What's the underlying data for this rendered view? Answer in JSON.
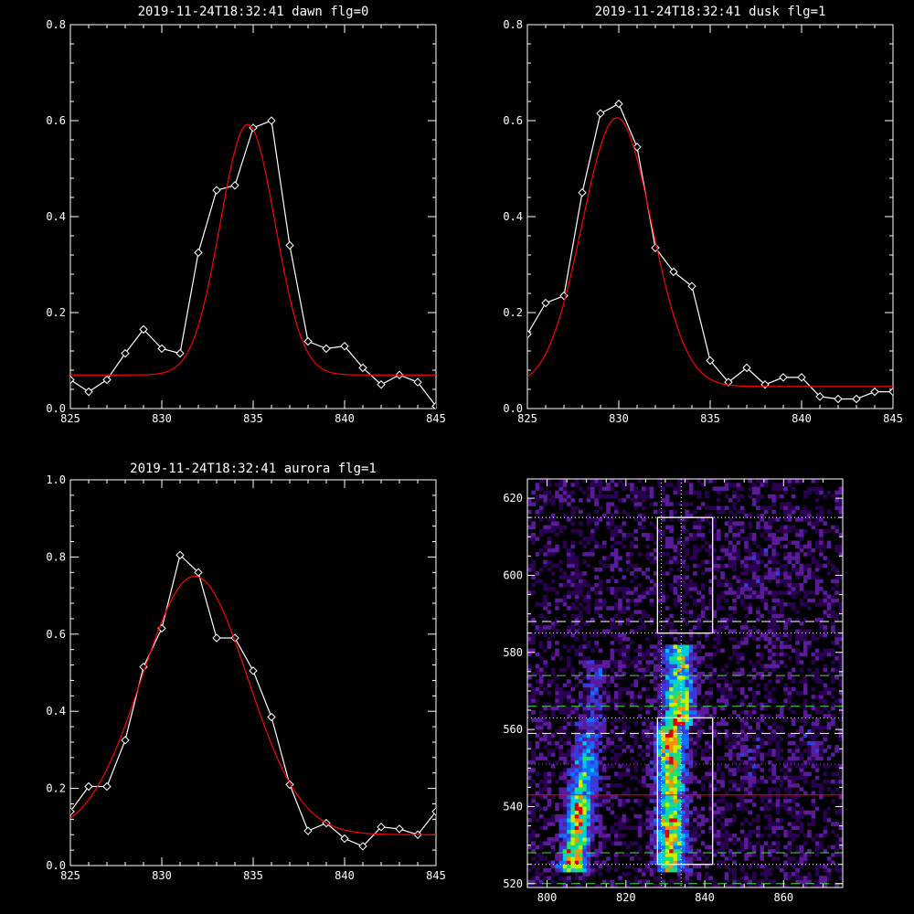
{
  "panels": [
    {
      "title": "2019-11-24T18:32:41 dawn flg=0",
      "chart_data": {
        "type": "line",
        "xlim": [
          825,
          845
        ],
        "ylim": [
          0.0,
          0.8
        ],
        "xticks": [
          "825",
          "830",
          "835",
          "840",
          "845"
        ],
        "yticks": [
          "0.0",
          "0.2",
          "0.4",
          "0.6",
          "0.8"
        ],
        "series": [
          {
            "role": "measured",
            "color": "#ffffff",
            "x": [
              825,
              826,
              827,
              828,
              829,
              830,
              831,
              832,
              833,
              834,
              835,
              836,
              837,
              838,
              839,
              840,
              841,
              842,
              843,
              844,
              845
            ],
            "y": [
              0.06,
              0.035,
              0.06,
              0.115,
              0.165,
              0.125,
              0.115,
              0.325,
              0.455,
              0.465,
              0.585,
              0.6,
              0.34,
              0.14,
              0.125,
              0.13,
              0.085,
              0.05,
              0.07,
              0.055,
              0.005
            ]
          },
          {
            "role": "gaussian-fit",
            "color": "#ff0000",
            "gaussian": {
              "amplitude": 0.522,
              "center": 834.7,
              "sigma": 1.5,
              "offset": 0.07
            }
          }
        ]
      }
    },
    {
      "title": "2019-11-24T18:32:41 dusk flg=1",
      "chart_data": {
        "type": "line",
        "xlim": [
          825,
          845
        ],
        "ylim": [
          0.0,
          0.8
        ],
        "xticks": [
          "825",
          "830",
          "835",
          "840",
          "845"
        ],
        "yticks": [
          "0.0",
          "0.2",
          "0.4",
          "0.6",
          "0.8"
        ],
        "series": [
          {
            "role": "measured",
            "color": "#ffffff",
            "x": [
              825,
              826,
              827,
              828,
              829,
              830,
              831,
              832,
              833,
              834,
              835,
              836,
              837,
              838,
              839,
              840,
              841,
              842,
              843,
              844,
              845
            ],
            "y": [
              0.155,
              0.22,
              0.235,
              0.45,
              0.615,
              0.635,
              0.545,
              0.335,
              0.285,
              0.255,
              0.1,
              0.055,
              0.085,
              0.05,
              0.065,
              0.065,
              0.025,
              0.02,
              0.02,
              0.035,
              0.035
            ]
          },
          {
            "role": "gaussian-fit",
            "color": "#ff0000",
            "gaussian": {
              "amplitude": 0.56,
              "center": 829.9,
              "sigma": 1.9,
              "offset": 0.046
            }
          }
        ]
      }
    },
    {
      "title": "2019-11-24T18:32:41 aurora flg=1",
      "chart_data": {
        "type": "line",
        "xlim": [
          825,
          845
        ],
        "ylim": [
          0.0,
          1.0
        ],
        "xticks": [
          "825",
          "830",
          "835",
          "840",
          "845"
        ],
        "yticks": [
          "0.0",
          "0.2",
          "0.4",
          "0.6",
          "0.8",
          "1.0"
        ],
        "series": [
          {
            "role": "measured",
            "color": "#ffffff",
            "x": [
              825,
              826,
              827,
              828,
              829,
              830,
              831,
              832,
              833,
              834,
              835,
              836,
              837,
              838,
              839,
              840,
              841,
              842,
              843,
              844,
              845
            ],
            "y": [
              0.14,
              0.205,
              0.205,
              0.325,
              0.515,
              0.615,
              0.805,
              0.76,
              0.59,
              0.59,
              0.505,
              0.385,
              0.21,
              0.09,
              0.11,
              0.07,
              0.05,
              0.1,
              0.095,
              0.08,
              0.14
            ]
          },
          {
            "role": "gaussian-fit",
            "color": "#ff0000",
            "gaussian": {
              "amplitude": 0.67,
              "center": 831.8,
              "sigma": 2.9,
              "offset": 0.08
            }
          }
        ]
      }
    }
  ],
  "heatmap": {
    "chart_data": {
      "type": "heatmap",
      "xlim": [
        795,
        875
      ],
      "ylim": [
        519,
        625
      ],
      "xticks": [
        800,
        820,
        840,
        860
      ],
      "yticks": [
        520,
        540,
        560,
        580,
        600,
        620
      ],
      "colormap": [
        "#000000",
        "#2a0050",
        "#5a1a9a",
        "#3a3ad8",
        "#1070ff",
        "#00c8e8",
        "#20e070",
        "#c8f000",
        "#ff9000",
        "#e00000"
      ],
      "features": [
        {
          "name": "left-arc",
          "x_center_at_bottom": 806,
          "x_center_at_top": 812,
          "y_range": [
            523,
            575
          ],
          "peak_y": 538
        },
        {
          "name": "main-column",
          "x_center": 831,
          "y_range": [
            523,
            580
          ],
          "peak_y": 558
        }
      ],
      "boxes": [
        {
          "x": [
            828,
            842
          ],
          "y": [
            585,
            615
          ],
          "color": "#ffffff"
        },
        {
          "x": [
            828,
            842
          ],
          "y": [
            525,
            563
          ],
          "color": "#ffffff"
        }
      ],
      "vertical_guides": [
        {
          "x": 829,
          "style": "dotted",
          "color": "#ffffff"
        },
        {
          "x": 834,
          "style": "dotted",
          "color": "#ffffff"
        }
      ],
      "horizontal_guides": [
        {
          "y": 615,
          "style": "dotted",
          "color": "#ffffff"
        },
        {
          "y": 588,
          "style": "dashed",
          "color": "#ffffff"
        },
        {
          "y": 585,
          "style": "dotted",
          "color": "#ffffff"
        },
        {
          "y": 574,
          "style": "dashed",
          "color": "#40e040"
        },
        {
          "y": 566,
          "style": "dashed",
          "color": "#40e040"
        },
        {
          "y": 563,
          "style": "dotted",
          "color": "#ffffff"
        },
        {
          "y": 559,
          "style": "dashed",
          "color": "#ffffff"
        },
        {
          "y": 551,
          "style": "dotted",
          "color": "#ff00ff"
        },
        {
          "y": 543,
          "style": "solid",
          "color": "#ff0000"
        },
        {
          "y": 528,
          "style": "dashed",
          "color": "#40e040"
        },
        {
          "y": 525,
          "style": "dotted",
          "color": "#ffffff"
        },
        {
          "y": 520,
          "style": "dashed",
          "color": "#40e040"
        }
      ]
    }
  }
}
